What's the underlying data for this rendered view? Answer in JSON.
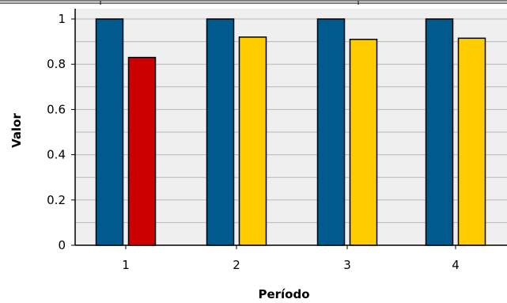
{
  "chart_data": {
    "type": "bar",
    "title": "",
    "xlabel": "Período",
    "ylabel": "Valor",
    "categories": [
      "1",
      "2",
      "3",
      "4"
    ],
    "ylim": [
      0,
      1
    ],
    "yticks": [
      "0",
      "0.2",
      "0.4",
      "0.6",
      "0.8",
      "1"
    ],
    "grid": true,
    "legend": "none",
    "series": [
      {
        "values": [
          1,
          1,
          1,
          1
        ],
        "colors": [
          "#005a8e",
          "#005a8e",
          "#005a8e",
          "#005a8e"
        ]
      },
      {
        "values": [
          0.83,
          0.92,
          0.91,
          0.915
        ],
        "colors": [
          "#cc0000",
          "#ffcc00",
          "#ffcc00",
          "#ffcc00"
        ]
      }
    ],
    "colors": {
      "plot_background": "#efefef",
      "gridline": "#b8b8b8",
      "axis": "#000000",
      "bar_border": "#000000"
    }
  }
}
